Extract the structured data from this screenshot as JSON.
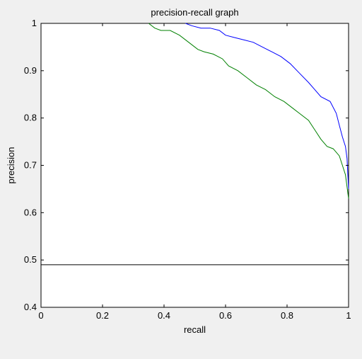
{
  "chart_data": {
    "type": "line",
    "title": "precision-recall graph",
    "xlabel": "recall",
    "ylabel": "precision",
    "xlim": [
      0,
      1
    ],
    "ylim": [
      0.4,
      1
    ],
    "xticks": [
      0,
      0.2,
      0.4,
      0.6,
      0.8,
      1
    ],
    "xtick_labels": [
      "0",
      "0.2",
      "0.4",
      "0.6",
      "0.8",
      "1"
    ],
    "yticks": [
      0.4,
      0.5,
      0.6,
      0.7,
      0.8,
      0.9,
      1
    ],
    "ytick_labels": [
      "0.4",
      "0.5",
      "0.6",
      "0.7",
      "0.8",
      "0.9",
      "1"
    ],
    "grid": false,
    "legend": "none",
    "series": [
      {
        "color": "#0000ff",
        "x": [
          0.47,
          0.49,
          0.52,
          0.55,
          0.58,
          0.6,
          0.63,
          0.66,
          0.69,
          0.72,
          0.75,
          0.78,
          0.81,
          0.84,
          0.87,
          0.89,
          0.91,
          0.94,
          0.96,
          0.97,
          0.98,
          0.99,
          0.995,
          1.0
        ],
        "y": [
          1.0,
          0.995,
          0.99,
          0.99,
          0.985,
          0.975,
          0.97,
          0.965,
          0.96,
          0.95,
          0.94,
          0.93,
          0.915,
          0.895,
          0.875,
          0.86,
          0.845,
          0.835,
          0.81,
          0.785,
          0.76,
          0.74,
          0.715,
          0.65
        ]
      },
      {
        "color": "#008000",
        "x": [
          0.35,
          0.37,
          0.39,
          0.42,
          0.45,
          0.48,
          0.51,
          0.53,
          0.56,
          0.59,
          0.61,
          0.64,
          0.67,
          0.7,
          0.73,
          0.76,
          0.79,
          0.82,
          0.84,
          0.87,
          0.89,
          0.91,
          0.93,
          0.95,
          0.97,
          0.98,
          0.99,
          1.0
        ],
        "y": [
          1.0,
          0.99,
          0.985,
          0.985,
          0.975,
          0.96,
          0.945,
          0.94,
          0.935,
          0.925,
          0.91,
          0.9,
          0.885,
          0.87,
          0.86,
          0.845,
          0.835,
          0.82,
          0.81,
          0.795,
          0.775,
          0.755,
          0.74,
          0.735,
          0.72,
          0.7,
          0.68,
          0.63
        ]
      },
      {
        "color": "#000000",
        "x": [
          0,
          1
        ],
        "y": [
          0.49,
          0.49
        ]
      }
    ]
  }
}
